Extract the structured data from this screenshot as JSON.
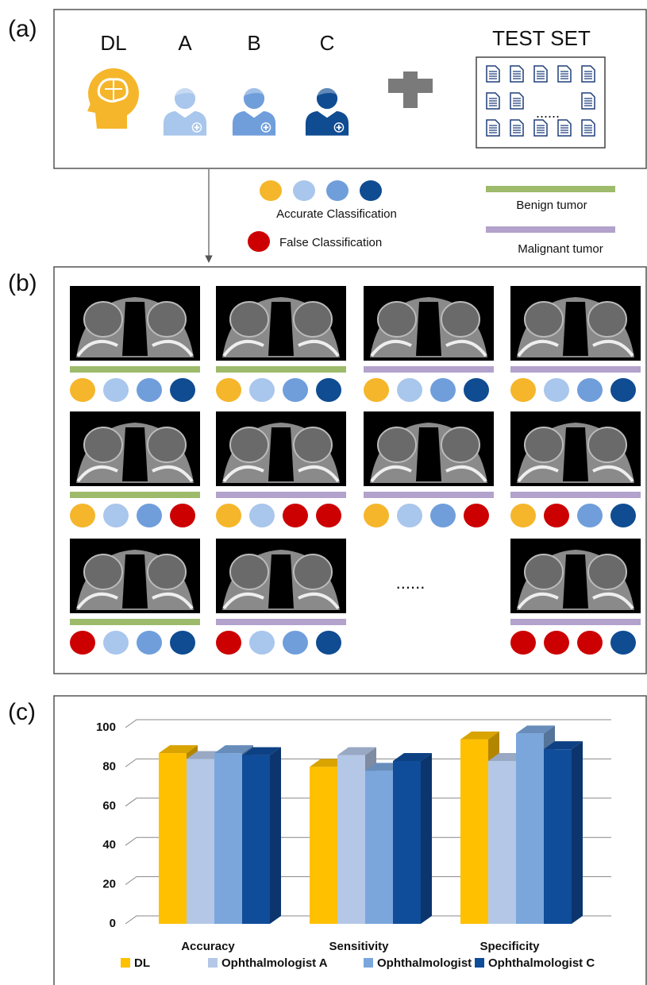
{
  "panel_a": {
    "label": "(a)",
    "readers": [
      "DL",
      "A",
      "B",
      "C"
    ],
    "reader_colors": [
      "#f5b62b",
      "#a9c6ec",
      "#6f9edb",
      "#0f4c92"
    ],
    "test_set": "TEST SET",
    "test_set_dots": "......"
  },
  "legend": {
    "accurate": "Accurate Classification",
    "false": "False Classification",
    "benign": "Benign tumor",
    "malignant": "Malignant tumor",
    "accurate_colors": [
      "#f5b62b",
      "#a9c6ec",
      "#6f9edb",
      "#0f4c92"
    ],
    "false_color": "#cc0000",
    "benign_color": "#9dbb6b",
    "malignant_color": "#b3a2cc"
  },
  "panel_b": {
    "label": "(b)",
    "ellipsis": "......",
    "cases": [
      {
        "tumor_color": "#9dbb6b",
        "result_colors": [
          "#f5b62b",
          "#a9c6ec",
          "#6f9edb",
          "#0f4c92"
        ]
      },
      {
        "tumor_color": "#9dbb6b",
        "result_colors": [
          "#f5b62b",
          "#a9c6ec",
          "#6f9edb",
          "#0f4c92"
        ]
      },
      {
        "tumor_color": "#b3a2cc",
        "result_colors": [
          "#f5b62b",
          "#a9c6ec",
          "#6f9edb",
          "#0f4c92"
        ]
      },
      {
        "tumor_color": "#b3a2cc",
        "result_colors": [
          "#f5b62b",
          "#a9c6ec",
          "#6f9edb",
          "#0f4c92"
        ]
      },
      {
        "tumor_color": "#9dbb6b",
        "result_colors": [
          "#f5b62b",
          "#a9c6ec",
          "#6f9edb",
          "#cc0000"
        ]
      },
      {
        "tumor_color": "#b3a2cc",
        "result_colors": [
          "#f5b62b",
          "#a9c6ec",
          "#cc0000",
          "#cc0000"
        ]
      },
      {
        "tumor_color": "#b3a2cc",
        "result_colors": [
          "#f5b62b",
          "#a9c6ec",
          "#6f9edb",
          "#cc0000"
        ]
      },
      {
        "tumor_color": "#b3a2cc",
        "result_colors": [
          "#f5b62b",
          "#cc0000",
          "#6f9edb",
          "#0f4c92"
        ]
      },
      {
        "tumor_color": "#9dbb6b",
        "result_colors": [
          "#cc0000",
          "#a9c6ec",
          "#6f9edb",
          "#0f4c92"
        ]
      },
      {
        "tumor_color": "#b3a2cc",
        "result_colors": [
          "#cc0000",
          "#a9c6ec",
          "#6f9edb",
          "#0f4c92"
        ]
      },
      {
        "tumor_color": "#b3a2cc",
        "result_colors": [
          "#cc0000",
          "#cc0000",
          "#cc0000",
          "#0f4c92"
        ]
      }
    ]
  },
  "panel_c_label": "(c)",
  "chart_data": {
    "type": "bar",
    "categories": [
      "Accuracy",
      "Sensitivity",
      "Specificity"
    ],
    "series": [
      {
        "name": "DL",
        "color": "#ffc000",
        "values": [
          87,
          80,
          94
        ]
      },
      {
        "name": "Ophthalmologist A",
        "color": "#b4c7e7",
        "values": [
          84,
          86,
          83
        ]
      },
      {
        "name": "Ophthalmologist B",
        "color": "#7aa6dc",
        "values": [
          87,
          78,
          97
        ]
      },
      {
        "name": "Ophthalmologist C",
        "color": "#0f4c9a",
        "values": [
          86,
          83,
          89
        ]
      }
    ],
    "ylim": [
      0,
      100
    ],
    "yticks": [
      0,
      20,
      40,
      60,
      80,
      100
    ],
    "grid": true,
    "legend": "bottom"
  }
}
